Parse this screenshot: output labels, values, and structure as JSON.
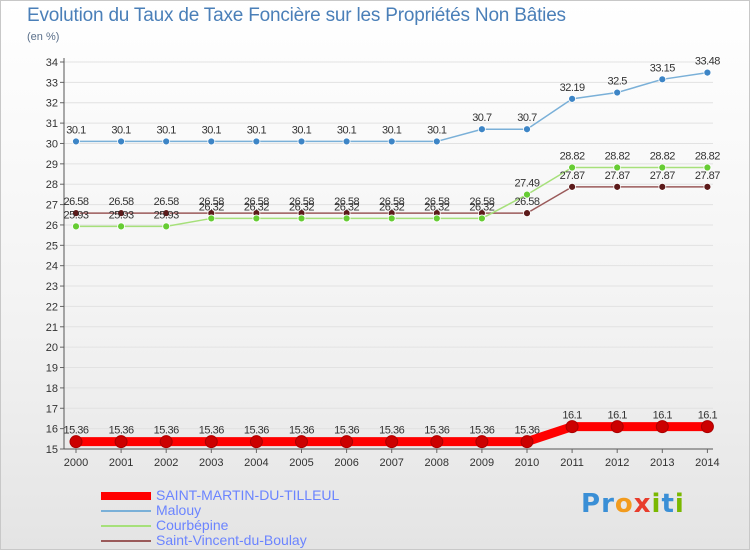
{
  "chart_data": {
    "type": "line",
    "title": "Evolution du Taux de Taxe Foncière sur les Propriétés Non Bâties",
    "ylabel": "(en %)",
    "xlabel": "",
    "x": [
      "2000",
      "2001",
      "2002",
      "2003",
      "2004",
      "2005",
      "2006",
      "2007",
      "2008",
      "2009",
      "2010",
      "2011",
      "2012",
      "2013",
      "2014"
    ],
    "ylim": [
      15,
      34
    ],
    "yticks": [
      15,
      16,
      17,
      18,
      19,
      20,
      21,
      22,
      23,
      24,
      25,
      26,
      27,
      28,
      29,
      30,
      31,
      32,
      33,
      34
    ],
    "series": [
      {
        "name": "SAINT-MARTIN-DU-TILLEUL",
        "color": "#ff0000",
        "marker": "#cc0000",
        "values": [
          15.36,
          15.36,
          15.36,
          15.36,
          15.36,
          15.36,
          15.36,
          15.36,
          15.36,
          15.36,
          15.36,
          16.1,
          16.1,
          16.1,
          16.1
        ],
        "labels": [
          "15.36",
          "15.36",
          "15.36",
          "15.36",
          "15.36",
          "15.36",
          "15.36",
          "15.36",
          "15.36",
          "15.36",
          "15.36",
          "16.1",
          "16.1",
          "16.1",
          "16.1"
        ]
      },
      {
        "name": "Malouy",
        "color": "#7ab0d8",
        "marker": "#3d85c6",
        "values": [
          30.1,
          30.1,
          30.1,
          30.1,
          30.1,
          30.1,
          30.1,
          30.1,
          30.1,
          30.7,
          30.7,
          32.19,
          32.5,
          33.15,
          33.48
        ],
        "labels": [
          "30.1",
          "30.1",
          "30.1",
          "30.1",
          "30.1",
          "30.1",
          "30.1",
          "30.1",
          "30.1",
          "30.7",
          "30.7",
          "32.19",
          "32.5",
          "33.15",
          "33.48"
        ]
      },
      {
        "name": "Courbépine",
        "color": "#a6e07a",
        "marker": "#66cc33",
        "values": [
          25.93,
          25.93,
          25.93,
          26.32,
          26.32,
          26.32,
          26.32,
          26.32,
          26.32,
          26.32,
          27.49,
          28.82,
          28.82,
          28.82,
          28.82
        ],
        "labels": [
          "25.93",
          "25.93",
          "25.93",
          "26.32",
          "26.32",
          "26.32",
          "26.32",
          "26.32",
          "26.32",
          "26.32",
          "27.49",
          "28.82",
          "28.82",
          "28.82",
          "28.82"
        ]
      },
      {
        "name": "Saint-Vincent-du-Boulay",
        "color": "#9a5a5a",
        "marker": "#5c1a1a",
        "values": [
          26.58,
          26.58,
          26.58,
          26.58,
          26.58,
          26.58,
          26.58,
          26.58,
          26.58,
          26.58,
          26.58,
          27.87,
          27.87,
          27.87,
          27.87
        ],
        "labels": [
          "26.58",
          "26.58",
          "26.58",
          "26.58",
          "26.58",
          "26.58",
          "26.58",
          "26.58",
          "26.58",
          "26.58",
          "26.58",
          "27.87",
          "27.87",
          "27.87",
          "27.87"
        ]
      }
    ]
  },
  "logo": {
    "text": "Proxiti",
    "letters": [
      "P",
      "r",
      "o",
      "x",
      "i",
      "t",
      "i"
    ],
    "colors": [
      "#3a8fd6",
      "#3a8fd6",
      "#f29b1d",
      "#e83c2c",
      "#7ab800",
      "#3a8fd6",
      "#7ab800"
    ]
  }
}
